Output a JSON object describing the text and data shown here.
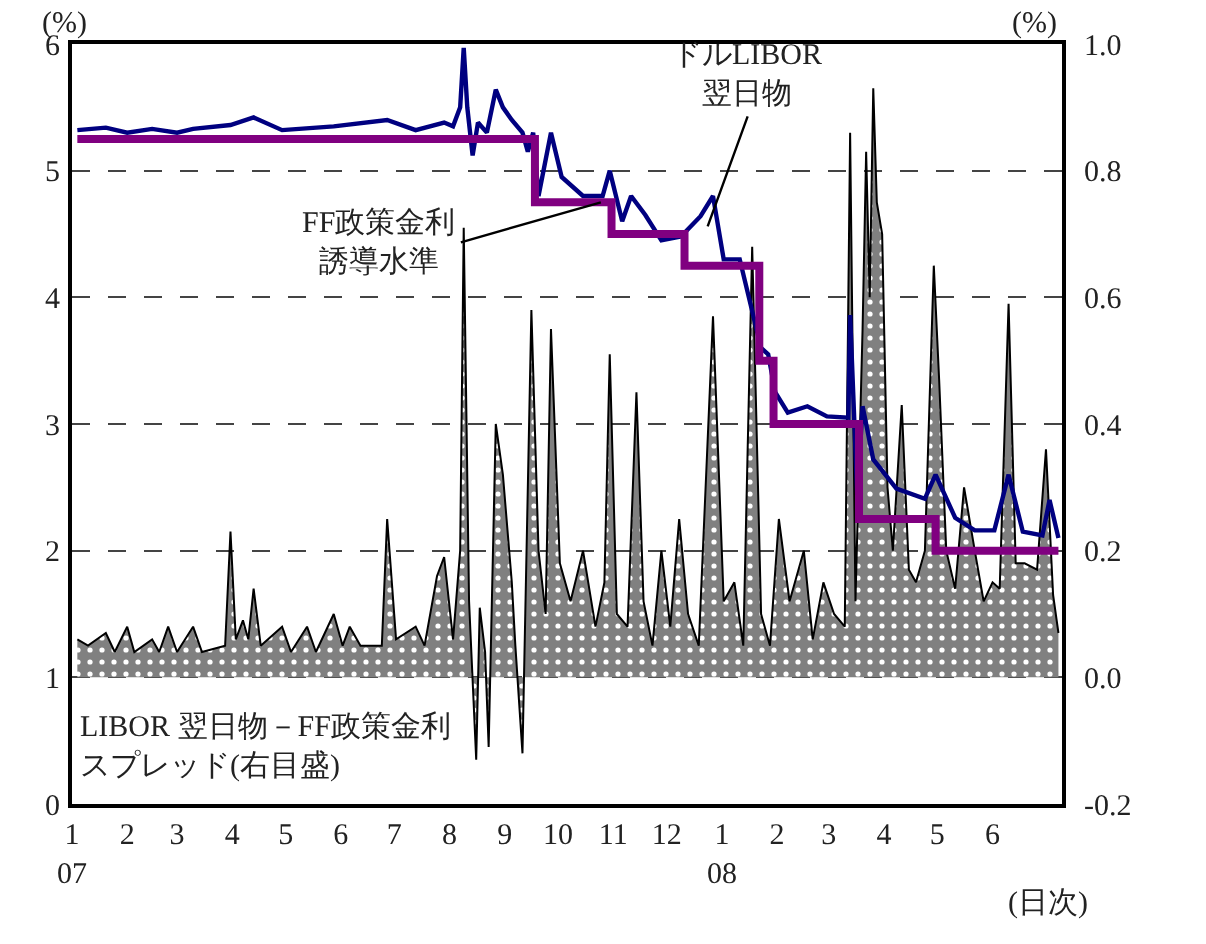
{
  "chart_data": {
    "type": "line",
    "ylabel": "(%)",
    "y2label": "(%)",
    "xlabel": "(日次)",
    "xlim": [
      "2007-01-01",
      "2008-07-10"
    ],
    "xticks": [
      {
        "value": "2007-01-01",
        "label": "1\n07"
      },
      {
        "value": "2007-02-01",
        "label": "2"
      },
      {
        "value": "2007-03-01",
        "label": "3"
      },
      {
        "value": "2007-04-01",
        "label": "4"
      },
      {
        "value": "2007-05-01",
        "label": "5"
      },
      {
        "value": "2007-06-01",
        "label": "6"
      },
      {
        "value": "2007-07-01",
        "label": "7"
      },
      {
        "value": "2007-08-01",
        "label": "8"
      },
      {
        "value": "2007-09-01",
        "label": "9"
      },
      {
        "value": "2007-10-01",
        "label": "10"
      },
      {
        "value": "2007-11-01",
        "label": "11"
      },
      {
        "value": "2007-12-01",
        "label": "12"
      },
      {
        "value": "2008-01-01",
        "label": "1\n08"
      },
      {
        "value": "2008-02-01",
        "label": "2"
      },
      {
        "value": "2008-03-01",
        "label": "3"
      },
      {
        "value": "2008-04-01",
        "label": "4"
      },
      {
        "value": "2008-05-01",
        "label": "5"
      },
      {
        "value": "2008-06-01",
        "label": "6"
      }
    ],
    "ylim": [
      0,
      6
    ],
    "yticks": [
      0,
      1,
      2,
      3,
      4,
      5,
      6
    ],
    "y2lim": [
      -0.2,
      1.0
    ],
    "y2ticks": [
      {
        "value": -0.2,
        "label": "-0.2"
      },
      {
        "value": 0,
        "label": "0.0"
      },
      {
        "value": 0.2,
        "label": "0.2"
      },
      {
        "value": 0.4,
        "label": "0.4"
      },
      {
        "value": 0.6,
        "label": "0.6"
      },
      {
        "value": 0.8,
        "label": "0.8"
      },
      {
        "value": 1.0,
        "label": "1.0"
      }
    ],
    "grid": "y",
    "marker": "none",
    "series": [
      {
        "type": "area",
        "axis": "y2",
        "color": "#808080",
        "x": [
          "2007-01-04",
          "2007-01-10",
          "2007-01-20",
          "2007-01-25",
          "2007-02-01",
          "2007-02-05",
          "2007-02-15",
          "2007-02-19",
          "2007-02-24",
          "2007-03-01",
          "2007-03-10",
          "2007-03-15",
          "2007-03-28",
          "2007-03-31",
          "2007-04-03",
          "2007-04-07",
          "2007-04-10",
          "2007-04-13",
          "2007-04-17",
          "2007-04-29",
          "2007-05-04",
          "2007-05-13",
          "2007-05-18",
          "2007-05-28",
          "2007-06-02",
          "2007-06-06",
          "2007-06-12",
          "2007-06-24",
          "2007-06-27",
          "2007-07-02",
          "2007-07-13",
          "2007-07-18",
          "2007-07-25",
          "2007-07-29",
          "2007-08-03",
          "2007-08-07",
          "2007-08-09",
          "2007-08-12",
          "2007-08-16",
          "2007-08-18",
          "2007-08-21",
          "2007-08-23",
          "2007-08-27",
          "2007-08-31",
          "2007-09-05",
          "2007-09-07",
          "2007-09-11",
          "2007-09-16",
          "2007-09-20",
          "2007-09-24",
          "2007-09-27",
          "2007-10-02",
          "2007-10-08",
          "2007-10-15",
          "2007-10-22",
          "2007-10-27",
          "2007-10-30",
          "2007-11-03",
          "2007-11-09",
          "2007-11-14",
          "2007-11-18",
          "2007-11-23",
          "2007-11-28",
          "2007-12-03",
          "2007-12-08",
          "2007-12-13",
          "2007-12-19",
          "2007-12-27",
          "2008-01-02",
          "2008-01-08",
          "2008-01-13",
          "2008-01-18",
          "2008-01-23",
          "2008-01-28",
          "2008-02-02",
          "2008-02-08",
          "2008-02-16",
          "2008-02-21",
          "2008-02-27",
          "2008-03-04",
          "2008-03-10",
          "2008-03-13",
          "2008-03-16",
          "2008-03-20",
          "2008-03-22",
          "2008-03-24",
          "2008-03-26",
          "2008-03-28",
          "2008-03-31",
          "2008-04-03",
          "2008-04-06",
          "2008-04-11",
          "2008-04-15",
          "2008-04-19",
          "2008-04-24",
          "2008-04-29",
          "2008-05-02",
          "2008-05-06",
          "2008-05-11",
          "2008-05-16",
          "2008-05-22",
          "2008-05-27",
          "2008-06-01",
          "2008-06-05",
          "2008-06-10",
          "2008-06-14",
          "2008-06-19",
          "2008-06-26",
          "2008-07-01",
          "2008-07-05",
          "2008-07-08"
        ],
        "values": [
          0.06,
          0.05,
          0.07,
          0.04,
          0.08,
          0.04,
          0.06,
          0.04,
          0.08,
          0.04,
          0.08,
          0.04,
          0.05,
          0.23,
          0.06,
          0.09,
          0.06,
          0.14,
          0.05,
          0.08,
          0.04,
          0.08,
          0.04,
          0.1,
          0.05,
          0.08,
          0.05,
          0.05,
          0.25,
          0.06,
          0.08,
          0.05,
          0.16,
          0.19,
          0.06,
          0.2,
          0.71,
          0.12,
          -0.13,
          0.11,
          0.04,
          -0.11,
          0.4,
          0.32,
          0.15,
          0.05,
          -0.12,
          0.58,
          0.2,
          0.1,
          0.55,
          0.18,
          0.12,
          0.2,
          0.08,
          0.15,
          0.51,
          0.1,
          0.08,
          0.45,
          0.12,
          0.05,
          0.2,
          0.08,
          0.25,
          0.1,
          0.05,
          0.57,
          0.12,
          0.15,
          0.05,
          0.68,
          0.1,
          0.05,
          0.25,
          0.12,
          0.2,
          0.06,
          0.15,
          0.1,
          0.08,
          0.86,
          0.12,
          0.55,
          0.83,
          0.6,
          0.93,
          0.75,
          0.7,
          0.3,
          0.2,
          0.43,
          0.17,
          0.15,
          0.2,
          0.65,
          0.47,
          0.2,
          0.14,
          0.3,
          0.2,
          0.12,
          0.15,
          0.14,
          0.59,
          0.18,
          0.18,
          0.17,
          0.36,
          0.13,
          0.07
        ]
      },
      {
        "color": "#000080",
        "x": [
          "2007-01-04",
          "2007-01-20",
          "2007-02-01",
          "2007-02-15",
          "2007-03-01",
          "2007-03-10",
          "2007-03-31",
          "2007-04-13",
          "2007-04-29",
          "2007-05-28",
          "2007-06-27",
          "2007-07-13",
          "2007-07-29",
          "2007-08-03",
          "2007-08-07",
          "2007-08-09",
          "2007-08-11",
          "2007-08-14",
          "2007-08-17",
          "2007-08-22",
          "2007-08-27",
          "2007-08-31",
          "2007-09-05",
          "2007-09-11",
          "2007-09-14",
          "2007-09-17",
          "2007-09-20",
          "2007-09-27",
          "2007-10-03",
          "2007-10-15",
          "2007-10-26",
          "2007-10-30",
          "2007-11-06",
          "2007-11-11",
          "2007-11-19",
          "2007-11-28",
          "2007-12-09",
          "2007-12-20",
          "2007-12-27",
          "2008-01-02",
          "2008-01-11",
          "2008-01-23",
          "2008-01-27",
          "2008-01-31",
          "2008-02-07",
          "2008-02-18",
          "2008-02-29",
          "2008-03-12",
          "2008-03-13",
          "2008-03-17",
          "2008-03-20",
          "2008-03-26",
          "2008-04-08",
          "2008-04-24",
          "2008-04-30",
          "2008-05-11",
          "2008-05-22",
          "2008-06-02",
          "2008-06-10",
          "2008-06-18",
          "2008-06-29",
          "2008-07-03",
          "2008-07-08"
        ],
        "values": [
          5.32,
          5.34,
          5.3,
          5.33,
          5.3,
          5.33,
          5.36,
          5.42,
          5.32,
          5.35,
          5.4,
          5.32,
          5.38,
          5.35,
          5.5,
          5.97,
          5.5,
          5.12,
          5.38,
          5.3,
          5.64,
          5.5,
          5.4,
          5.3,
          5.15,
          5.3,
          4.8,
          5.3,
          4.95,
          4.8,
          4.8,
          5.0,
          4.6,
          4.8,
          4.65,
          4.45,
          4.48,
          4.64,
          4.8,
          4.3,
          4.3,
          3.6,
          3.55,
          3.25,
          3.09,
          3.14,
          3.06,
          3.05,
          3.86,
          2.44,
          3.14,
          2.72,
          2.49,
          2.41,
          2.6,
          2.26,
          2.16,
          2.16,
          2.6,
          2.15,
          2.12,
          2.4,
          2.1
        ]
      },
      {
        "type": "step",
        "color": "#800080",
        "x": [
          "2007-01-04",
          "2007-09-18",
          "2007-10-31",
          "2007-12-11",
          "2008-01-22",
          "2008-01-30",
          "2008-03-18",
          "2008-04-30",
          "2008-07-08"
        ],
        "values": [
          5.25,
          4.75,
          4.5,
          4.25,
          3.5,
          3.0,
          2.25,
          2.0,
          2.0
        ]
      }
    ],
    "annotations": [
      {
        "text": "FF政策金利誘導水準",
        "x": "2007-10-25",
        "y": 4.75
      },
      {
        "text": "ドルLIBOR翌日物",
        "x": "2007-12-24",
        "y": 4.56
      },
      "LIBOR 翌日物－FF政策金利スプレッド(右目盛)"
    ]
  }
}
